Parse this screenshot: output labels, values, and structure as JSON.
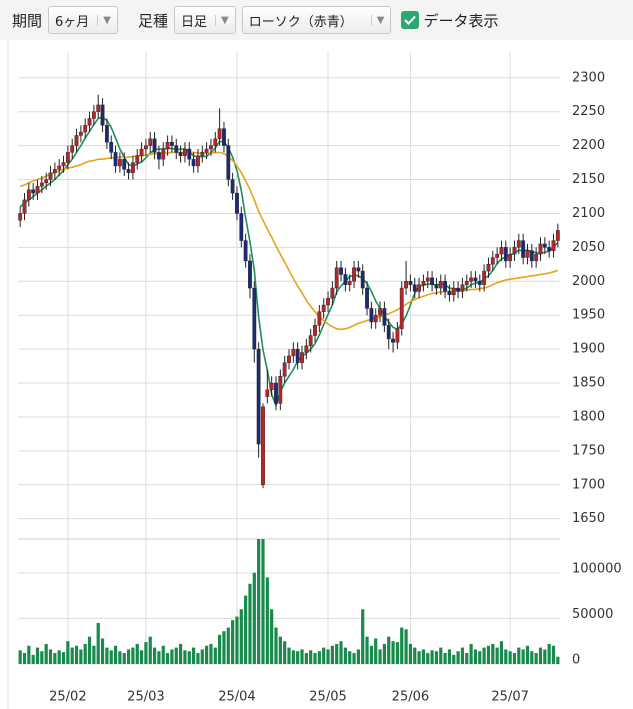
{
  "toolbar": {
    "period_label": "期間",
    "period_value": "6ヶ月",
    "interval_label": "足種",
    "interval_value": "日足",
    "chart_style": "ローソク（赤青）",
    "show_data": "データ表示"
  },
  "chart_data": {
    "type": "candlestick",
    "categories": [
      null,
      null,
      null,
      null,
      null,
      null,
      null,
      null,
      null,
      null,
      null,
      "25/02",
      null,
      null,
      null,
      null,
      null,
      null,
      null,
      null,
      null,
      null,
      null,
      null,
      null,
      null,
      null,
      null,
      null,
      "25/03",
      null,
      null,
      null,
      null,
      null,
      null,
      null,
      null,
      null,
      null,
      null,
      null,
      null,
      null,
      null,
      null,
      null,
      null,
      null,
      null,
      "25/04",
      null,
      null,
      null,
      null,
      null,
      null,
      null,
      null,
      null,
      null,
      null,
      null,
      null,
      null,
      null,
      null,
      null,
      null,
      null,
      null,
      "25/05",
      null,
      null,
      null,
      null,
      null,
      null,
      null,
      null,
      null,
      null,
      null,
      null,
      null,
      null,
      null,
      null,
      null,
      null,
      "25/06",
      null,
      null,
      null,
      null,
      null,
      null,
      null,
      null,
      null,
      null,
      null,
      null,
      null,
      null,
      null,
      null,
      null,
      null,
      null,
      null,
      null,
      null,
      "25/07",
      null,
      null,
      null,
      null,
      null,
      null,
      null,
      null,
      null,
      null,
      null
    ],
    "open": [
      2090,
      2100,
      2120,
      2135,
      2130,
      2140,
      2145,
      2150,
      2160,
      2165,
      2170,
      2175,
      2190,
      2200,
      2215,
      2220,
      2230,
      2240,
      2250,
      2260,
      2230,
      2205,
      2190,
      2170,
      2180,
      2165,
      2160,
      2175,
      2185,
      2195,
      2200,
      2210,
      2190,
      2180,
      2195,
      2205,
      2200,
      2190,
      2185,
      2195,
      2180,
      2170,
      2185,
      2190,
      2195,
      2200,
      2210,
      2225,
      2200,
      2150,
      2130,
      2100,
      2060,
      2030,
      1990,
      1900,
      1700,
      1830,
      1840,
      1850,
      1820,
      1860,
      1880,
      1890,
      1900,
      1880,
      1895,
      1905,
      1920,
      1935,
      1955,
      1965,
      1975,
      1990,
      2020,
      2010,
      1995,
      2000,
      2020,
      2015,
      1990,
      1960,
      1940,
      1950,
      1960,
      1935,
      1915,
      1910,
      1930,
      1990,
      2000,
      1995,
      1985,
      1995,
      2000,
      2005,
      1995,
      1990,
      2000,
      1985,
      1980,
      1990,
      1985,
      1995,
      2000,
      2005,
      2000,
      1995,
      2015,
      2025,
      2035,
      2040,
      2050,
      2030,
      2040,
      2050,
      2060,
      2035,
      2045,
      2030,
      2040,
      2055,
      2050,
      2045,
      2060
    ],
    "high": [
      2110,
      2130,
      2145,
      2145,
      2150,
      2155,
      2160,
      2170,
      2175,
      2180,
      2185,
      2200,
      2210,
      2225,
      2230,
      2240,
      2250,
      2260,
      2275,
      2270,
      2240,
      2215,
      2200,
      2190,
      2190,
      2175,
      2185,
      2195,
      2205,
      2210,
      2220,
      2220,
      2200,
      2205,
      2215,
      2215,
      2210,
      2200,
      2205,
      2205,
      2190,
      2195,
      2200,
      2205,
      2210,
      2220,
      2255,
      2235,
      2210,
      2160,
      2140,
      2110,
      2070,
      2040,
      2000,
      1910,
      1820,
      1870,
      1860,
      1860,
      1870,
      1890,
      1900,
      1910,
      1910,
      1905,
      1915,
      1930,
      1945,
      1965,
      1975,
      1985,
      2000,
      2030,
      2030,
      2020,
      2010,
      2030,
      2030,
      2025,
      2000,
      1970,
      1960,
      1970,
      1970,
      1945,
      1925,
      1940,
      2000,
      2030,
      2010,
      2005,
      2005,
      2010,
      2015,
      2015,
      2005,
      2010,
      2010,
      1995,
      2000,
      2000,
      2005,
      2010,
      2015,
      2015,
      2010,
      2025,
      2035,
      2045,
      2050,
      2060,
      2060,
      2050,
      2060,
      2070,
      2070,
      2055,
      2055,
      2050,
      2065,
      2065,
      2060,
      2070,
      2085
    ],
    "low": [
      2080,
      2090,
      2110,
      2120,
      2120,
      2130,
      2135,
      2140,
      2150,
      2155,
      2160,
      2165,
      2180,
      2190,
      2205,
      2210,
      2220,
      2230,
      2240,
      2220,
      2195,
      2180,
      2160,
      2160,
      2155,
      2150,
      2150,
      2165,
      2175,
      2185,
      2190,
      2180,
      2165,
      2170,
      2185,
      2190,
      2180,
      2175,
      2175,
      2170,
      2160,
      2160,
      2175,
      2180,
      2185,
      2190,
      2200,
      2190,
      2140,
      2120,
      2090,
      2050,
      2020,
      1975,
      1880,
      1740,
      1695,
      1820,
      1830,
      1810,
      1810,
      1850,
      1870,
      1880,
      1870,
      1870,
      1885,
      1895,
      1910,
      1925,
      1945,
      1955,
      1965,
      1980,
      2000,
      1985,
      1985,
      1990,
      2005,
      1980,
      1950,
      1930,
      1930,
      1940,
      1925,
      1900,
      1895,
      1900,
      1920,
      1980,
      1985,
      1975,
      1975,
      1985,
      1990,
      1985,
      1980,
      1980,
      1975,
      1970,
      1970,
      1975,
      1975,
      1985,
      1990,
      1990,
      1985,
      1985,
      2005,
      2015,
      2025,
      2030,
      2020,
      2020,
      2030,
      2040,
      2025,
      2025,
      2020,
      2020,
      2030,
      2040,
      2035,
      2035,
      2050
    ],
    "close": [
      2100,
      2120,
      2135,
      2130,
      2140,
      2145,
      2150,
      2160,
      2165,
      2170,
      2175,
      2190,
      2200,
      2215,
      2220,
      2230,
      2240,
      2250,
      2260,
      2230,
      2205,
      2190,
      2170,
      2180,
      2165,
      2160,
      2175,
      2185,
      2195,
      2200,
      2210,
      2190,
      2180,
      2195,
      2205,
      2200,
      2190,
      2185,
      2195,
      2180,
      2170,
      2185,
      2190,
      2195,
      2200,
      2210,
      2225,
      2200,
      2150,
      2130,
      2100,
      2060,
      2030,
      1990,
      1900,
      1760,
      1815,
      1840,
      1850,
      1820,
      1860,
      1880,
      1890,
      1900,
      1880,
      1895,
      1905,
      1920,
      1935,
      1955,
      1965,
      1975,
      1990,
      2020,
      2010,
      1995,
      2000,
      2020,
      2015,
      1990,
      1960,
      1940,
      1950,
      1960,
      1935,
      1915,
      1910,
      1930,
      1990,
      2000,
      1995,
      1985,
      1995,
      2000,
      2005,
      1995,
      1990,
      2000,
      1985,
      1980,
      1990,
      1985,
      1995,
      2000,
      2005,
      2000,
      1995,
      2015,
      2025,
      2035,
      2040,
      2050,
      2030,
      2040,
      2050,
      2060,
      2035,
      2045,
      2030,
      2040,
      2055,
      2050,
      2045,
      2060,
      2075
    ],
    "volume": [
      15000,
      12000,
      20000,
      10000,
      18000,
      14000,
      22000,
      16000,
      12000,
      15000,
      13000,
      25000,
      18000,
      20000,
      16000,
      22000,
      30000,
      20000,
      45000,
      28000,
      18000,
      15000,
      20000,
      14000,
      12000,
      16000,
      18000,
      22000,
      15000,
      24000,
      30000,
      18000,
      14000,
      20000,
      12000,
      16000,
      18000,
      22000,
      15000,
      14000,
      18000,
      12000,
      16000,
      20000,
      22000,
      18000,
      32000,
      36000,
      40000,
      48000,
      52000,
      60000,
      75000,
      88000,
      100000,
      137000,
      137000,
      95000,
      60000,
      40000,
      30000,
      25000,
      18000,
      15000,
      14000,
      16000,
      12000,
      15000,
      12000,
      14000,
      18000,
      16000,
      20000,
      22000,
      25000,
      18000,
      14000,
      12000,
      16000,
      60000,
      30000,
      20000,
      28000,
      16000,
      22000,
      30000,
      25000,
      24000,
      40000,
      38000,
      22000,
      18000,
      14000,
      16000,
      12000,
      15000,
      14000,
      18000,
      12000,
      16000,
      10000,
      14000,
      18000,
      12000,
      22000,
      16000,
      14000,
      18000,
      20000,
      22000,
      18000,
      25000,
      16000,
      14000,
      12000,
      18000,
      16000,
      20000,
      14000,
      12000,
      18000,
      16000,
      22000,
      20000,
      8000
    ],
    "moving_averages": [
      {
        "color": "#1e8f5a",
        "values": [
          2110,
          2115,
          2120,
          2125,
          2130,
          2135,
          2140,
          2145,
          2150,
          2157,
          2163,
          2172,
          2180,
          2190,
          2200,
          2211,
          2221,
          2231,
          2240,
          2242,
          2237,
          2227,
          2211,
          2195,
          2183,
          2172,
          2170,
          2173,
          2176,
          2182,
          2189,
          2194,
          2195,
          2195,
          2196,
          2196,
          2194,
          2195,
          2195,
          2191,
          2185,
          2183,
          2184,
          2184,
          2190,
          2196,
          2206,
          2206,
          2197,
          2183,
          2163,
          2134,
          2094,
          2058,
          2016,
          1948,
          1899,
          1869,
          1833,
          1817,
          1837,
          1850,
          1860,
          1870,
          1882,
          1889,
          1894,
          1900,
          1908,
          1921,
          1936,
          1951,
          1965,
          1984,
          1993,
          2000,
          2007,
          2009,
          2008,
          2004,
          1997,
          1985,
          1971,
          1960,
          1949,
          1940,
          1932,
          1929,
          1937,
          1949,
          1965,
          1982,
          1993,
          1994,
          1996,
          1996,
          1994,
          1997,
          1995,
          1990,
          1989,
          1988,
          1987,
          1990,
          1995,
          1997,
          1999,
          2003,
          2008,
          2016,
          2026,
          2033,
          2036,
          2039,
          2041,
          2046,
          2045,
          2046,
          2044,
          2042,
          2041,
          2043,
          2044,
          2050,
          2057
        ]
      },
      {
        "color": "#e8a21c",
        "values": [
          2140,
          2142,
          2145,
          2148,
          2150,
          2152,
          2155,
          2158,
          2160,
          2163,
          2165,
          2167,
          2168,
          2170,
          2172,
          2175,
          2177,
          2178,
          2180,
          2180,
          2181,
          2182,
          2182,
          2183,
          2183,
          2183,
          2184,
          2185,
          2185,
          2186,
          2187,
          2188,
          2188,
          2189,
          2189,
          2190,
          2190,
          2190,
          2190,
          2190,
          2190,
          2189,
          2189,
          2189,
          2189,
          2190,
          2190,
          2188,
          2184,
          2178,
          2170,
          2160,
          2148,
          2135,
          2120,
          2103,
          2090,
          2077,
          2065,
          2052,
          2040,
          2028,
          2016,
          2004,
          1993,
          1983,
          1972,
          1963,
          1955,
          1948,
          1942,
          1937,
          1933,
          1930,
          1929,
          1930,
          1932,
          1935,
          1938,
          1940,
          1942,
          1944,
          1946,
          1948,
          1950,
          1952,
          1955,
          1958,
          1962,
          1966,
          1970,
          1973,
          1976,
          1978,
          1980,
          1982,
          1983,
          1984,
          1985,
          1985,
          1986,
          1986,
          1987,
          1987,
          1988,
          1988,
          1989,
          1990,
          1992,
          1995,
          1998,
          2000,
          2002,
          2003,
          2004,
          2005,
          2006,
          2007,
          2008,
          2009,
          2010,
          2011,
          2012,
          2014,
          2016
        ]
      }
    ],
    "up_color": "#b3262b",
    "down_color": "#1c2a78",
    "volume_color": "#178a4c",
    "ylim": [
      1623,
      2338
    ],
    "yticks": [
      1650,
      1700,
      1750,
      1800,
      1850,
      1900,
      1950,
      2000,
      2050,
      2100,
      2150,
      2200,
      2250,
      2300
    ],
    "volume_ylim": [
      0,
      136000
    ],
    "volume_yticks": [
      0,
      50000,
      100000
    ],
    "grid": true
  }
}
